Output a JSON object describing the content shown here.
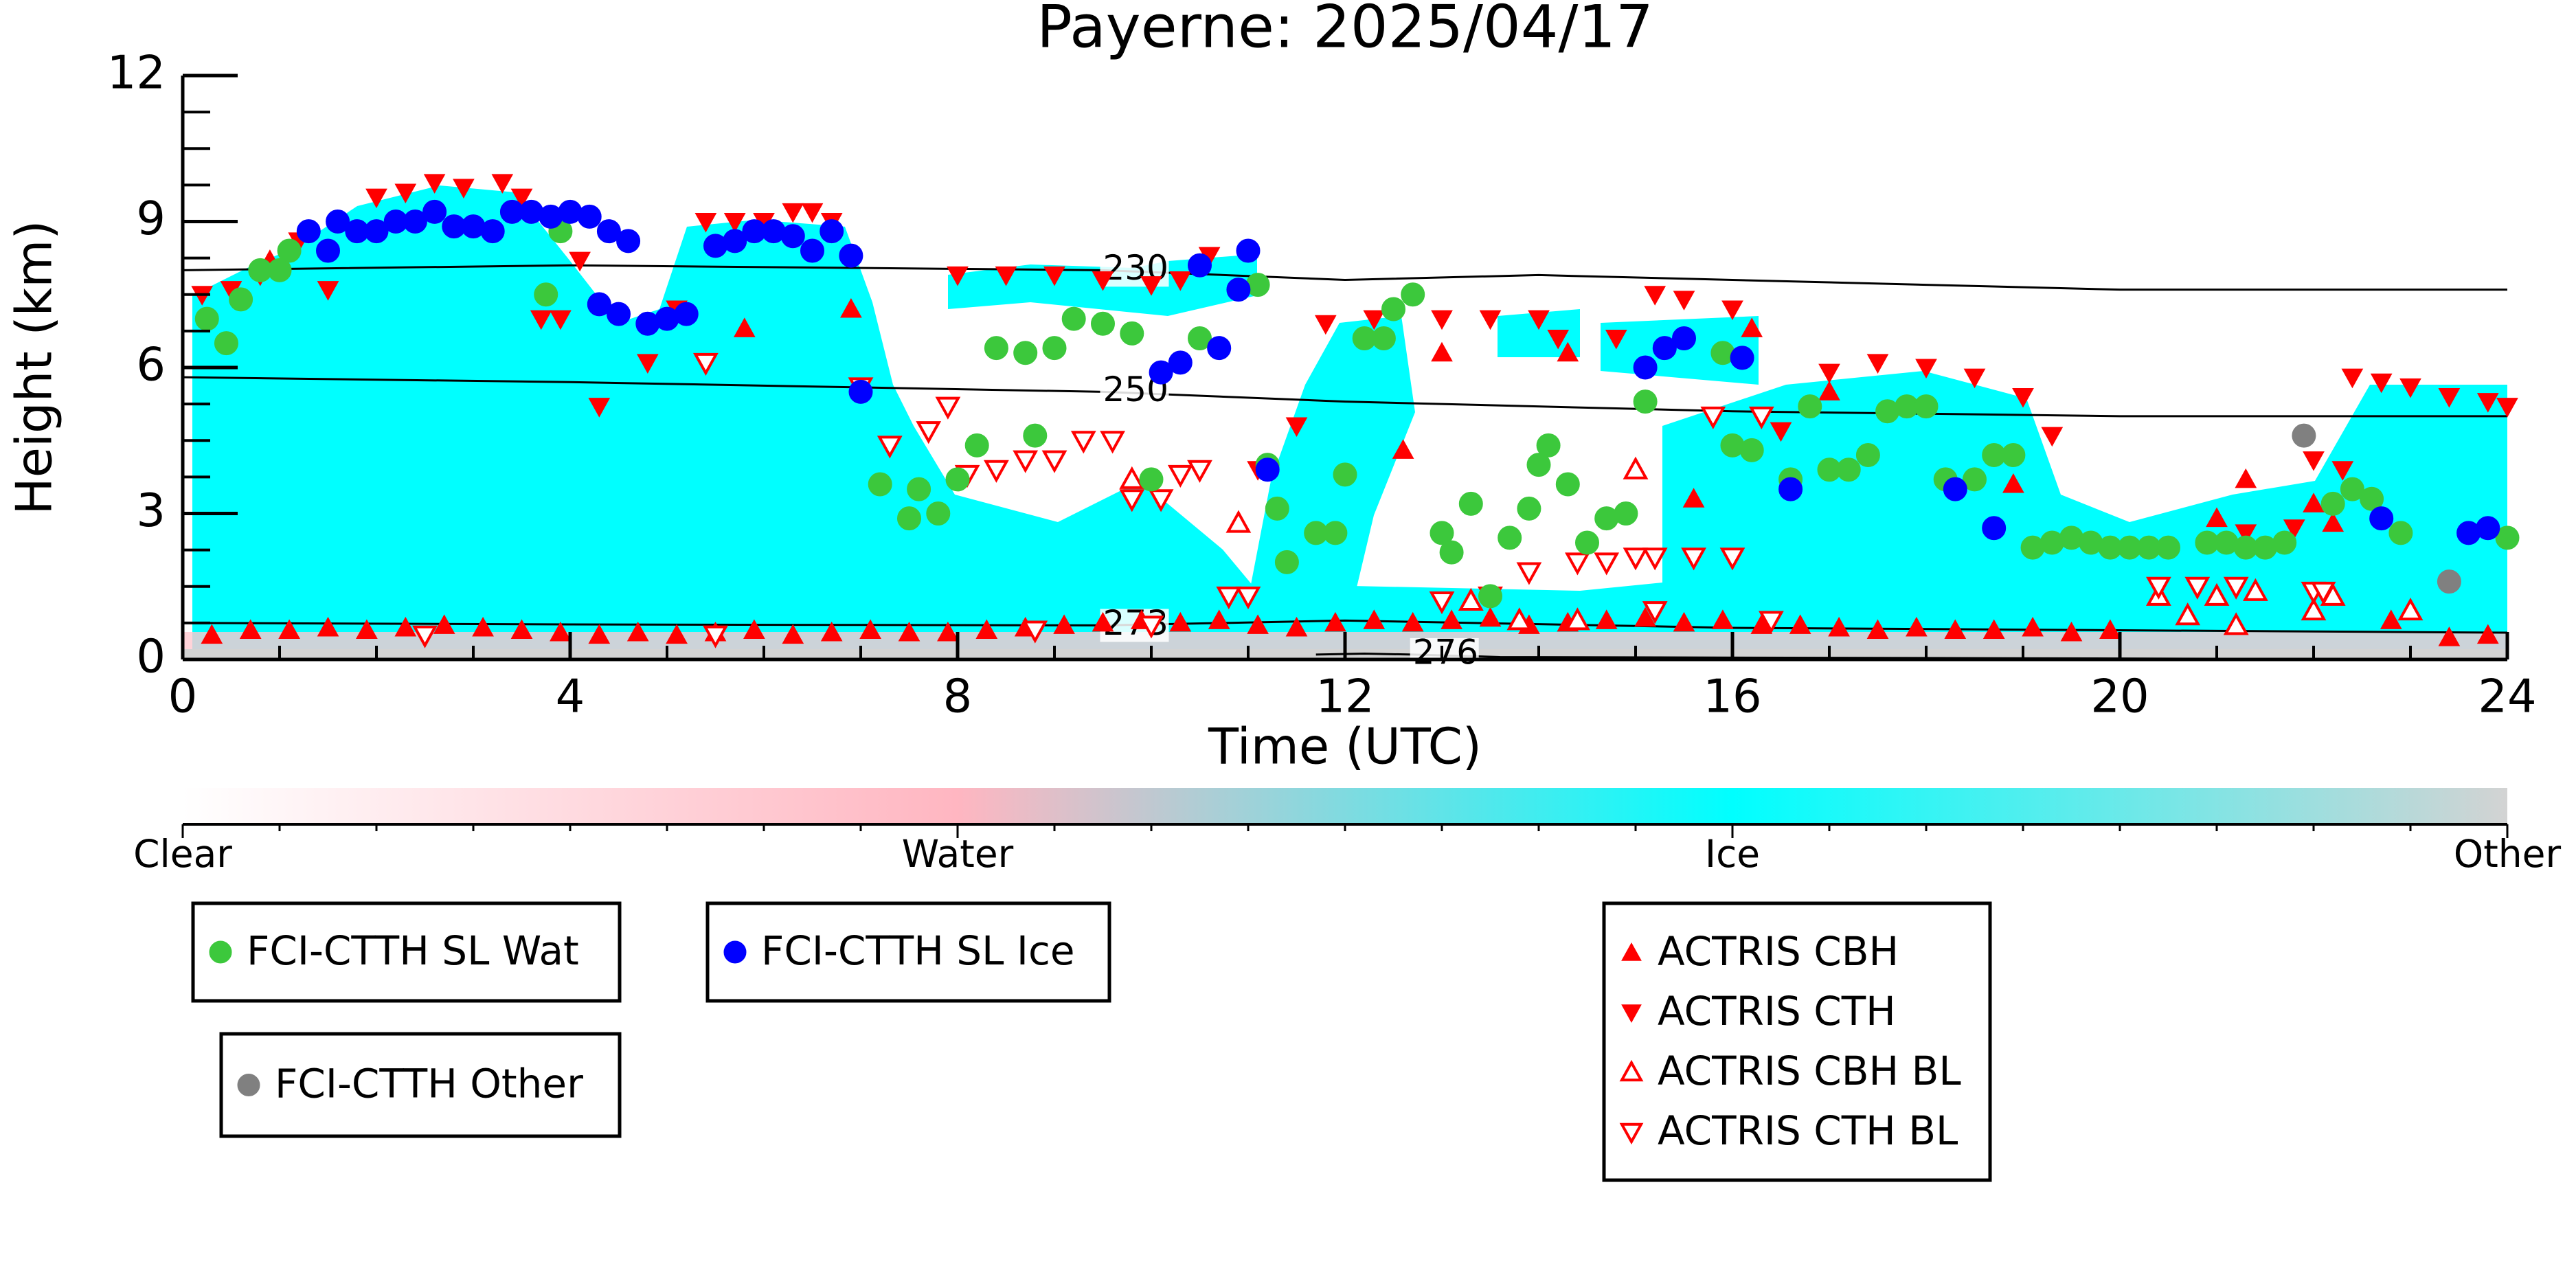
{
  "chart_data": {
    "type": "scatter",
    "title": "Payerne: 2025/04/17",
    "x_label": "Time (UTC)",
    "y_label": "Height (km)",
    "xlim": [
      0,
      24
    ],
    "xticks": [
      0,
      4,
      8,
      12,
      16,
      20,
      24
    ],
    "ylim": [
      0,
      12
    ],
    "yticks": [
      0,
      3,
      6,
      9,
      12
    ],
    "colorbar": {
      "labels": [
        "Clear",
        "Water",
        "Ice",
        "Other"
      ],
      "colors": [
        "#ffffff",
        "#ffb6c1",
        "#00ffff",
        "#d3d3d3"
      ]
    },
    "contours": [
      {
        "label": "230",
        "x": [
          0,
          4,
          9.5,
          12,
          14,
          16,
          20,
          24
        ],
        "y": [
          8.0,
          8.1,
          8.0,
          7.8,
          7.9,
          7.8,
          7.6,
          7.6
        ]
      },
      {
        "label": "250",
        "x": [
          0,
          4,
          9.5,
          12,
          16,
          20,
          24
        ],
        "y": [
          5.8,
          5.7,
          5.5,
          5.3,
          5.1,
          5.0,
          5.0
        ]
      },
      {
        "label": "273",
        "x": [
          0,
          4,
          9.5,
          12,
          16,
          20,
          24
        ],
        "y": [
          0.75,
          0.72,
          0.7,
          0.8,
          0.65,
          0.6,
          0.55
        ]
      },
      {
        "label": "276",
        "x": [
          11.7,
          12.2,
          12.7,
          13.6,
          24
        ],
        "y": [
          0.1,
          0.12,
          0.1,
          0.05,
          0.0
        ]
      }
    ],
    "series": [
      {
        "name": "FCI-CTTH SL Wat",
        "color": "#3cc83c",
        "marker": "circle",
        "filled": true,
        "x": [
          0.25,
          0.45,
          0.6,
          0.8,
          1.0,
          1.1,
          3.75,
          3.9,
          7.2,
          7.5,
          7.6,
          7.8,
          8.0,
          8.2,
          8.4,
          8.7,
          8.8,
          9.0,
          9.2,
          9.5,
          9.8,
          10.0,
          10.5,
          11.1,
          11.2,
          11.3,
          11.4,
          11.7,
          11.9,
          12.0,
          12.2,
          12.4,
          12.5,
          12.7,
          13.0,
          13.1,
          13.3,
          13.5,
          13.7,
          13.9,
          14.0,
          14.1,
          14.3,
          14.5,
          14.7,
          14.9,
          15.1,
          15.9,
          16.0,
          16.2,
          16.6,
          16.8,
          17.0,
          17.2,
          17.4,
          17.6,
          17.8,
          18.0,
          18.2,
          18.5,
          18.7,
          18.9,
          19.1,
          19.3,
          19.5,
          19.7,
          19.9,
          20.1,
          20.3,
          20.5,
          20.9,
          21.1,
          21.3,
          21.5,
          21.7,
          22.2,
          22.4,
          22.6,
          22.9,
          24.0
        ],
        "y": [
          7.0,
          6.5,
          7.4,
          8.0,
          8.0,
          8.4,
          7.5,
          8.8,
          3.6,
          2.9,
          3.5,
          3.0,
          3.7,
          4.4,
          6.4,
          6.3,
          4.6,
          6.4,
          7.0,
          6.9,
          6.7,
          3.7,
          6.6,
          7.7,
          4.0,
          3.1,
          2.0,
          2.6,
          2.6,
          3.8,
          6.6,
          6.6,
          7.2,
          7.5,
          2.6,
          2.2,
          3.2,
          1.3,
          2.5,
          3.1,
          4.0,
          4.4,
          3.6,
          2.4,
          2.9,
          3.0,
          5.3,
          6.3,
          4.4,
          4.3,
          3.7,
          5.2,
          3.9,
          3.9,
          4.2,
          5.1,
          5.2,
          5.2,
          3.7,
          3.7,
          4.2,
          4.2,
          2.3,
          2.4,
          2.5,
          2.4,
          2.3,
          2.3,
          2.3,
          2.3,
          2.4,
          2.4,
          2.3,
          2.3,
          2.4,
          3.2,
          3.5,
          3.3,
          2.6,
          2.5
        ]
      },
      {
        "name": "FCI-CTTH SL Ice",
        "color": "#0000ff",
        "marker": "circle",
        "filled": true,
        "x": [
          1.3,
          1.5,
          1.6,
          1.8,
          2.0,
          2.2,
          2.4,
          2.6,
          2.8,
          3.0,
          3.2,
          3.4,
          3.6,
          3.8,
          4.0,
          4.2,
          4.4,
          4.6,
          4.3,
          4.5,
          4.8,
          5.0,
          5.2,
          5.5,
          5.7,
          5.9,
          6.1,
          6.3,
          6.5,
          6.7,
          6.9,
          7.0,
          10.1,
          10.3,
          10.5,
          10.7,
          10.9,
          11.0,
          11.2,
          15.1,
          15.3,
          15.5,
          16.1,
          16.6,
          18.3,
          18.7,
          22.7,
          23.6,
          23.8
        ],
        "y": [
          8.8,
          8.4,
          9.0,
          8.8,
          8.8,
          9.0,
          9.0,
          9.2,
          8.9,
          8.9,
          8.8,
          9.2,
          9.2,
          9.1,
          9.2,
          9.1,
          8.8,
          8.6,
          7.3,
          7.1,
          6.9,
          7.0,
          7.1,
          8.5,
          8.6,
          8.8,
          8.8,
          8.7,
          8.4,
          8.8,
          8.3,
          5.5,
          5.9,
          6.1,
          8.1,
          6.4,
          7.6,
          8.4,
          3.9,
          6.0,
          6.4,
          6.6,
          6.2,
          3.5,
          3.5,
          2.7,
          2.9,
          2.6,
          2.7
        ]
      },
      {
        "name": "FCI-CTTH Other",
        "color": "#808080",
        "marker": "circle",
        "filled": true,
        "x": [
          21.9,
          23.4
        ],
        "y": [
          4.6,
          1.6
        ]
      },
      {
        "name": "ACTRIS CBH",
        "color": "#ff0000",
        "marker": "triangle-up",
        "filled": true,
        "x": [
          0.3,
          0.7,
          1.1,
          1.5,
          1.9,
          2.3,
          2.7,
          3.1,
          3.5,
          3.9,
          4.3,
          4.7,
          5.1,
          5.5,
          5.9,
          6.3,
          6.7,
          7.1,
          7.5,
          7.9,
          8.3,
          8.7,
          9.1,
          9.5,
          9.9,
          10.3,
          10.7,
          11.1,
          11.5,
          11.9,
          12.3,
          12.7,
          13.1,
          13.5,
          13.9,
          14.3,
          14.7,
          15.1,
          15.5,
          15.9,
          16.3,
          16.7,
          17.1,
          17.5,
          17.9,
          18.3,
          18.7,
          19.1,
          19.5,
          19.9,
          23.4,
          23.8,
          0.9,
          5.8,
          6.9,
          12.6,
          13.0,
          14.3,
          15.6,
          16.2,
          17.0,
          18.9,
          21.0,
          21.3,
          22.0,
          22.2,
          22.8
        ],
        "y": [
          0.5,
          0.6,
          0.6,
          0.65,
          0.6,
          0.65,
          0.7,
          0.65,
          0.6,
          0.55,
          0.5,
          0.55,
          0.5,
          0.55,
          0.6,
          0.5,
          0.55,
          0.6,
          0.55,
          0.55,
          0.6,
          0.65,
          0.7,
          0.75,
          0.8,
          0.75,
          0.8,
          0.7,
          0.65,
          0.75,
          0.8,
          0.75,
          0.8,
          0.85,
          0.7,
          0.75,
          0.8,
          0.85,
          0.75,
          0.8,
          0.7,
          0.7,
          0.65,
          0.6,
          0.65,
          0.6,
          0.6,
          0.65,
          0.55,
          0.6,
          0.45,
          0.5,
          8.2,
          6.8,
          7.2,
          4.3,
          6.3,
          6.3,
          3.3,
          6.8,
          5.5,
          3.6,
          2.9,
          3.7,
          3.2,
          2.8,
          0.8
        ]
      },
      {
        "name": "ACTRIS CTH",
        "color": "#ff0000",
        "marker": "triangle-down",
        "filled": true,
        "x": [
          0.2,
          0.5,
          0.8,
          1.2,
          1.5,
          2.0,
          2.3,
          2.6,
          2.9,
          3.3,
          3.5,
          3.7,
          3.9,
          4.1,
          4.3,
          4.8,
          5.1,
          5.4,
          5.7,
          6.0,
          6.3,
          6.5,
          6.7,
          8.0,
          8.5,
          9.0,
          9.5,
          10.0,
          10.3,
          10.6,
          11.1,
          11.5,
          11.8,
          12.3,
          13.0,
          13.5,
          14.0,
          14.2,
          14.8,
          15.2,
          15.5,
          16.0,
          16.5,
          17.0,
          17.5,
          18.0,
          18.5,
          19.0,
          19.3,
          21.3,
          21.8,
          22.0,
          22.3,
          22.4,
          22.7,
          23.0,
          23.4,
          23.8,
          24.0
        ],
        "y": [
          7.5,
          7.6,
          7.9,
          8.6,
          7.6,
          9.5,
          9.6,
          9.8,
          9.7,
          9.8,
          9.5,
          7.0,
          7.0,
          8.2,
          5.2,
          6.1,
          7.2,
          9.0,
          9.0,
          9.0,
          9.2,
          9.2,
          9.0,
          7.9,
          7.9,
          7.9,
          7.8,
          7.7,
          7.8,
          8.3,
          3.9,
          4.8,
          6.9,
          7.0,
          7.0,
          7.0,
          7.0,
          6.6,
          6.6,
          7.5,
          7.4,
          7.2,
          4.7,
          5.9,
          6.1,
          6.0,
          5.8,
          5.4,
          4.6,
          2.6,
          2.7,
          4.1,
          3.9,
          5.8,
          5.7,
          5.6,
          5.4,
          5.3,
          5.2
        ]
      },
      {
        "name": "ACTRIS CBH BL",
        "color": "#ff0000",
        "marker": "triangle-up",
        "filled": false,
        "x": [
          9.8,
          10.9,
          15.0,
          20.4,
          20.7,
          21.0,
          21.2,
          21.4,
          22.0,
          22.2,
          23.0,
          13.3,
          13.8,
          14.4
        ],
        "y": [
          3.7,
          2.8,
          3.9,
          1.3,
          0.9,
          1.3,
          0.7,
          1.4,
          1.0,
          1.3,
          1.0,
          1.2,
          0.8,
          0.8
        ]
      },
      {
        "name": "ACTRIS CTH BL",
        "color": "#ff0000",
        "marker": "triangle-down",
        "filled": false,
        "x": [
          5.4,
          7.0,
          7.3,
          7.7,
          7.9,
          8.1,
          8.4,
          8.7,
          9.0,
          9.3,
          9.6,
          9.8,
          10.1,
          10.3,
          10.5,
          10.8,
          11.0,
          13.0,
          13.5,
          13.9,
          14.4,
          14.7,
          15.0,
          15.2,
          15.6,
          16.0,
          15.8,
          16.3,
          20.4,
          20.8,
          21.2,
          22.0,
          22.1,
          2.5,
          5.5,
          8.8,
          10.0,
          15.2,
          16.4
        ],
        "y": [
          6.1,
          5.6,
          4.4,
          4.7,
          5.2,
          3.8,
          3.9,
          4.1,
          4.1,
          4.5,
          4.5,
          3.3,
          3.3,
          3.8,
          3.9,
          1.3,
          1.3,
          1.2,
          1.3,
          1.8,
          2.0,
          2.0,
          2.1,
          2.1,
          2.1,
          2.1,
          5.0,
          5.0,
          1.5,
          1.5,
          1.5,
          1.4,
          1.4,
          0.5,
          0.5,
          0.6,
          0.7,
          1.0,
          0.8
        ]
      }
    ]
  }
}
